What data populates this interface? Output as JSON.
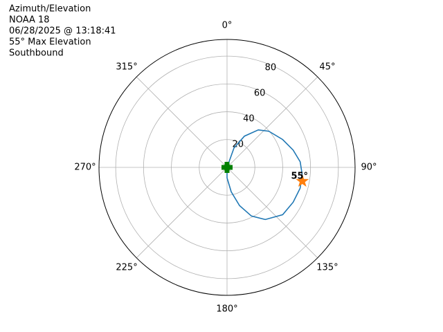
{
  "chart_data": {
    "type": "polar",
    "title": [
      "Azimuth/Elevation",
      "NOAA 18",
      "06/28/2025 @ 13:18:41",
      "55° Max Elevation",
      "Southbound"
    ],
    "theta_direction": "clockwise",
    "theta_zero": "N",
    "rlim": [
      0,
      92
    ],
    "rticks": [
      20,
      40,
      60,
      80
    ],
    "rlabel_angle": 23,
    "thetaticks": [
      {
        "value": 0,
        "label": "0°"
      },
      {
        "value": 45,
        "label": "45°"
      },
      {
        "value": 90,
        "label": "90°"
      },
      {
        "value": 135,
        "label": "135°"
      },
      {
        "value": 180,
        "label": "180°"
      },
      {
        "value": 225,
        "label": "225°"
      },
      {
        "value": 270,
        "label": "270°"
      },
      {
        "value": 315,
        "label": "315°"
      }
    ],
    "grid": true,
    "series": [
      {
        "marker": "line",
        "color": "#1f77b4",
        "theta": [
          0,
          19.7,
          29.1,
          39.8,
          49.1,
          63.4,
          75.3,
          85.6,
          95.3,
          105.9,
          117.8,
          130.4,
          143.7,
          153.4,
          161.9,
          170.3,
          180,
          0
        ],
        "values": [
          0,
          14.9,
          25.7,
          35.1,
          39.7,
          44.7,
          49.1,
          52.7,
          54.2,
          54.6,
          53.7,
          52.5,
          46.5,
          39.1,
          28.9,
          17.8,
          7.5,
          0
        ]
      },
      {
        "marker": "plus",
        "color": "#008000",
        "theta": [
          0
        ],
        "values": [
          0
        ]
      },
      {
        "marker": "star",
        "color": "#ff7f0e",
        "theta": [
          100.4
        ],
        "values": [
          55
        ],
        "value_labels": [
          "55°"
        ]
      }
    ]
  }
}
